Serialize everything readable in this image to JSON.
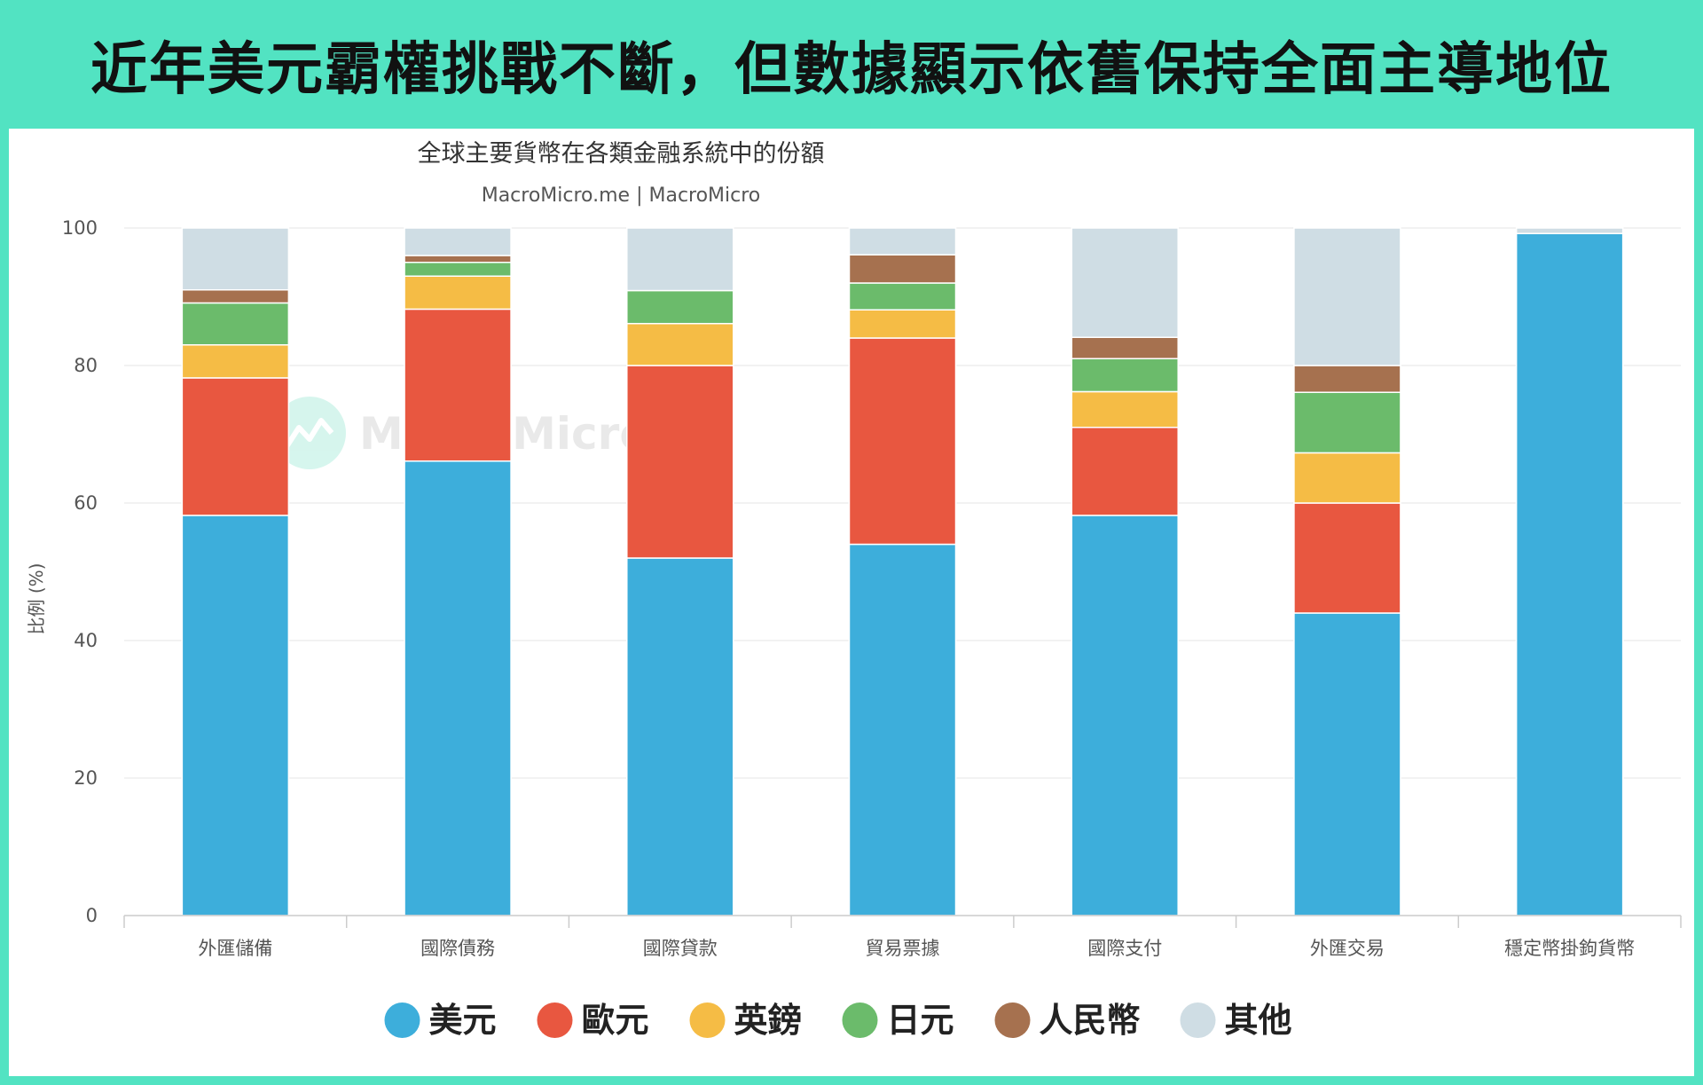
{
  "banner": {
    "title": "近年美元霸權挑戰不斷，但數據顯示依舊保持全面主導地位"
  },
  "watermark": "MacroMicro",
  "colors": {
    "frame": "#52e3c2",
    "美元": "#3daedb",
    "歐元": "#e85740",
    "英鎊": "#f5bc45",
    "日元": "#6bbb6b",
    "人民幣": "#a6714f",
    "其他": "#cfdde4"
  },
  "chart_data": {
    "type": "bar",
    "stacked": true,
    "title": "全球主要貨幣在各類金融系統中的份額",
    "subtitle": "MacroMicro.me | MacroMicro",
    "xlabel": "",
    "ylabel": "比例 (%)",
    "ylim": [
      0,
      100
    ],
    "yticks": [
      0,
      20,
      40,
      60,
      80,
      100
    ],
    "grid": true,
    "legend_position": "bottom",
    "categories": [
      "外匯儲備",
      "國際債務",
      "國際貸款",
      "貿易票據",
      "國際支付",
      "外匯交易",
      "穩定幣掛鉤貨幣"
    ],
    "series": [
      {
        "name": "美元",
        "color": "#3daedb",
        "values": [
          58.2,
          66.1,
          52,
          54,
          58.2,
          44,
          99.2
        ]
      },
      {
        "name": "歐元",
        "color": "#e85740",
        "values": [
          20,
          22.1,
          28,
          30,
          12.8,
          16,
          0
        ]
      },
      {
        "name": "英鎊",
        "color": "#f5bc45",
        "values": [
          4.8,
          4.8,
          6.1,
          4.1,
          5.2,
          7.3,
          0
        ]
      },
      {
        "name": "日元",
        "color": "#6bbb6b",
        "values": [
          6.1,
          2,
          4.8,
          3.9,
          4.8,
          8.8,
          0
        ]
      },
      {
        "name": "人民幣",
        "color": "#a6714f",
        "values": [
          1.9,
          1,
          0,
          4.1,
          3.1,
          3.9,
          0
        ]
      },
      {
        "name": "其他",
        "color": "#cfdde4",
        "values": [
          9,
          4,
          9.1,
          3.9,
          15.9,
          20,
          0.8
        ]
      }
    ]
  }
}
